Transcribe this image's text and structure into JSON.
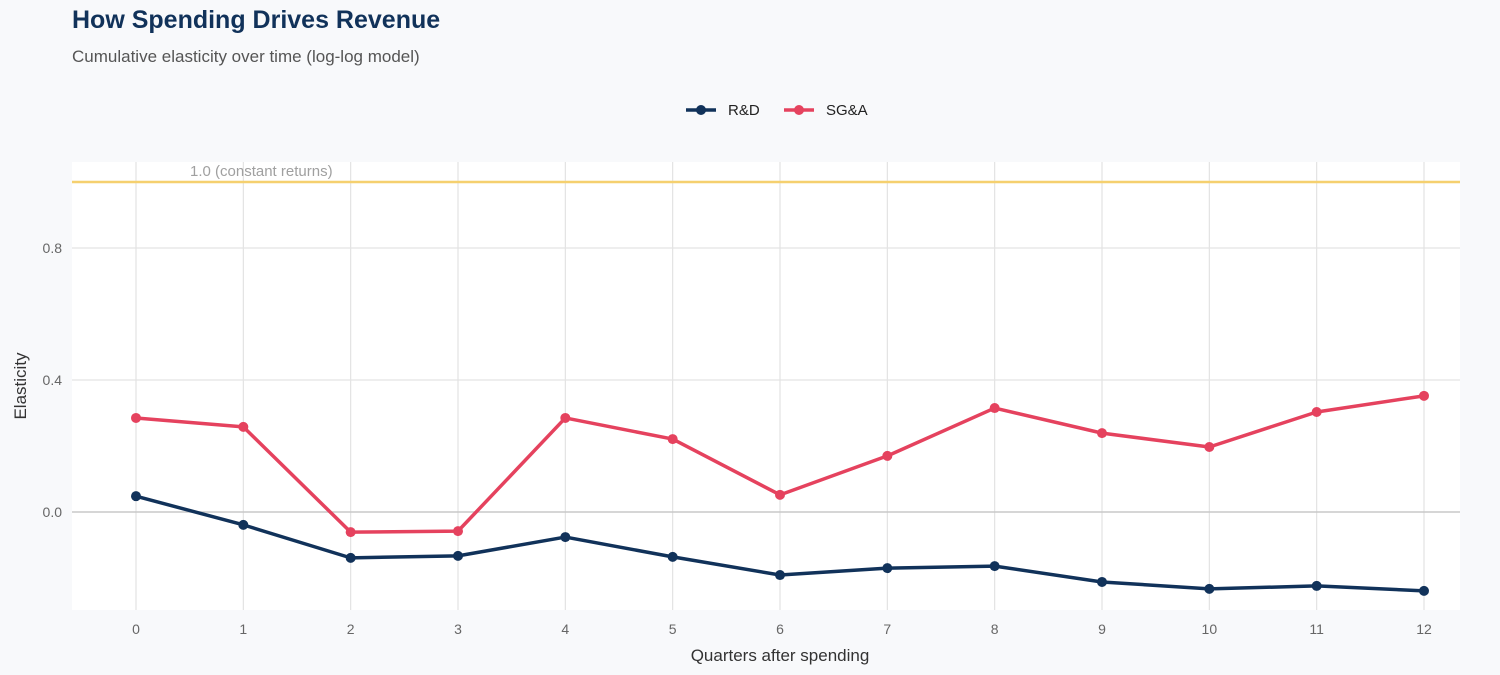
{
  "title": "How Spending Drives Revenue",
  "subtitle": "Cumulative elasticity over time (log-log model)",
  "chart_data": {
    "type": "line",
    "title": "How Spending Drives Revenue",
    "subtitle": "Cumulative elasticity over time (log-log model)",
    "xlabel": "Quarters after spending",
    "ylabel": "Elasticity",
    "x": [
      0,
      1,
      2,
      3,
      4,
      5,
      6,
      7,
      8,
      9,
      10,
      11,
      12
    ],
    "xlim": [
      -0.6,
      12.6
    ],
    "ylim": [
      -0.3,
      1.06
    ],
    "yticks": [
      0.0,
      0.4,
      0.8
    ],
    "ytick_labels": [
      "0.0",
      "0.4",
      "0.8"
    ],
    "xtick_labels": [
      "0",
      "1",
      "2",
      "3",
      "4",
      "5",
      "6",
      "7",
      "8",
      "9",
      "10",
      "11",
      "12"
    ],
    "grid": true,
    "legend_position": "top",
    "reference_line": {
      "y": 1.0,
      "label": "1.0 (constant returns)",
      "color": "#f5d06f"
    },
    "series": [
      {
        "name": "R&D",
        "color": "#11325a",
        "values": [
          0.048,
          -0.039,
          -0.139,
          -0.133,
          -0.076,
          -0.136,
          -0.191,
          -0.17,
          -0.164,
          -0.212,
          -0.233,
          -0.224,
          -0.239
        ]
      },
      {
        "name": "SG&A",
        "color": "#e5425e",
        "values": [
          0.285,
          0.258,
          -0.061,
          -0.058,
          0.285,
          0.221,
          0.052,
          0.17,
          0.315,
          0.239,
          0.197,
          0.303,
          0.352
        ]
      }
    ]
  }
}
